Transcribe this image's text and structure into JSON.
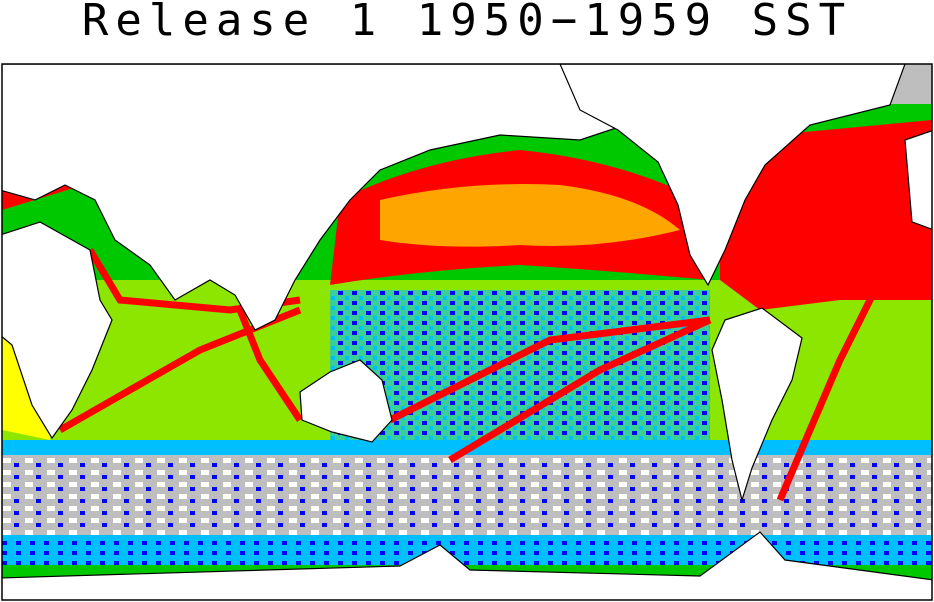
{
  "title": "Release 1 1950−1959 SST"
}
